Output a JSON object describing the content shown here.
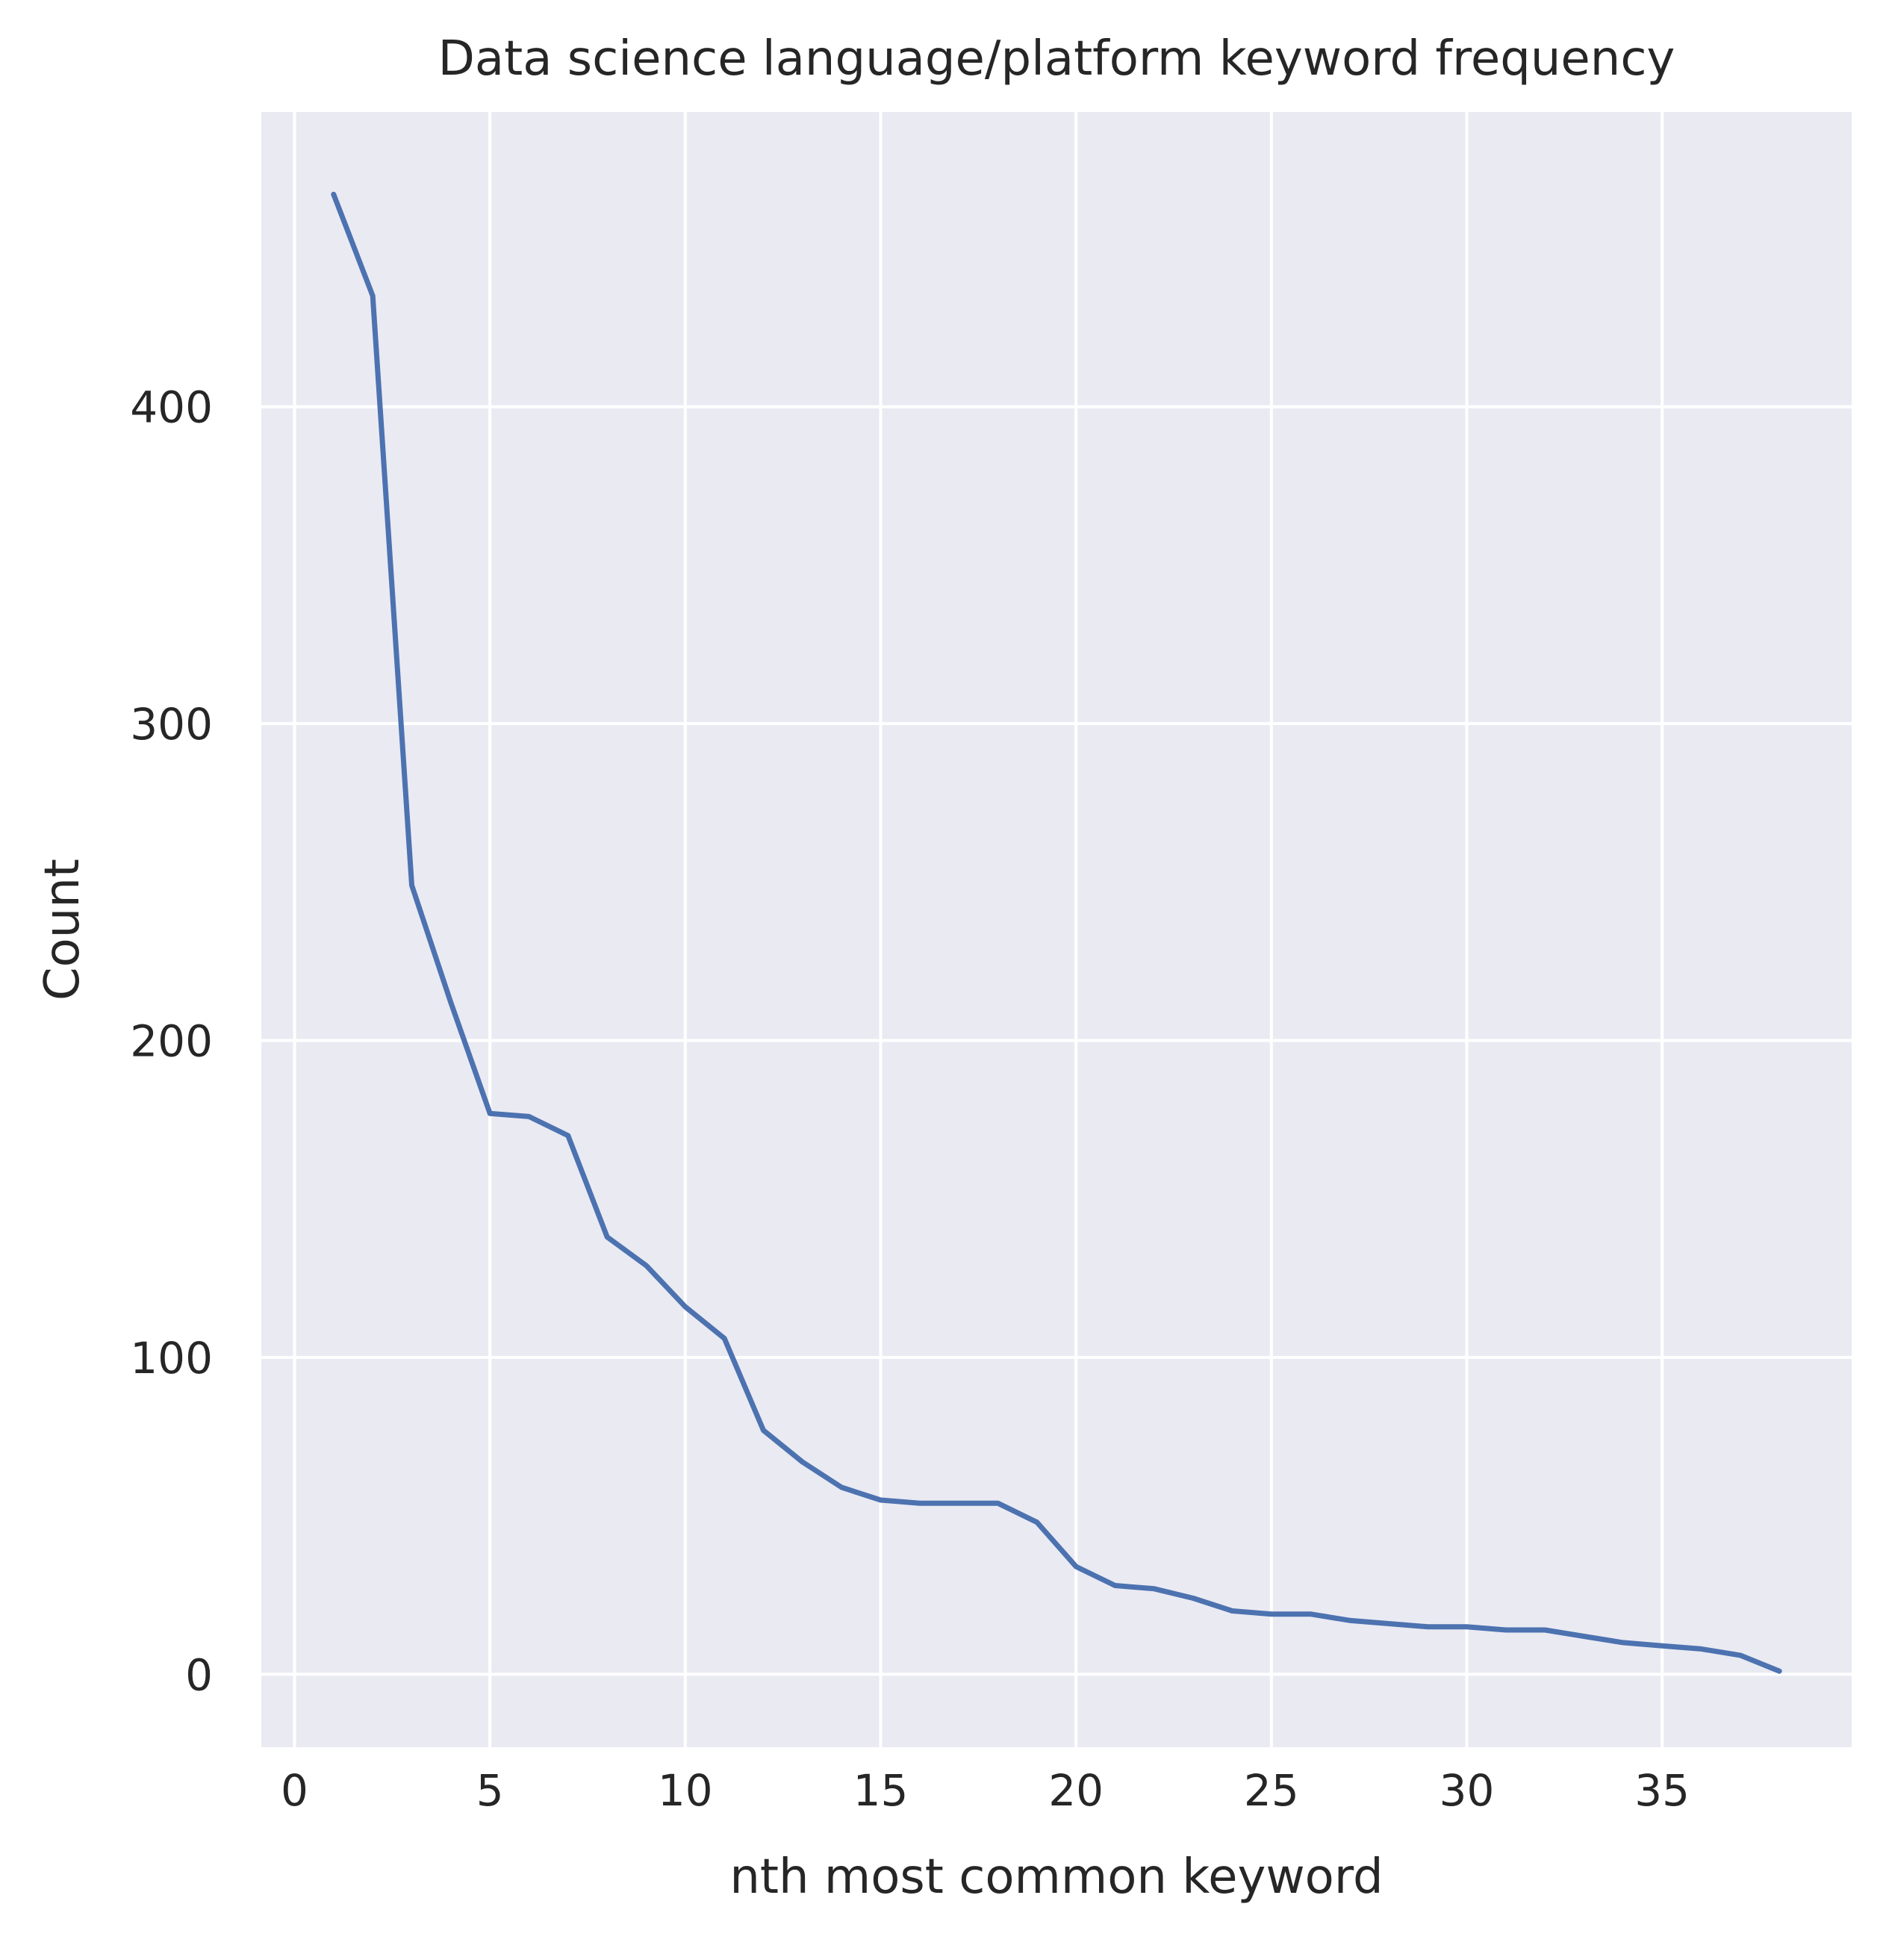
{
  "chart_data": {
    "type": "line",
    "title": "Data science language/platform keyword frequency",
    "xlabel": "nth most common keyword",
    "ylabel": "Count",
    "xlim": [
      -0.85,
      39.85
    ],
    "ylim": [
      -23,
      493
    ],
    "x_ticks": [
      0,
      5,
      10,
      15,
      20,
      25,
      30,
      35
    ],
    "y_ticks": [
      0,
      100,
      200,
      300,
      400
    ],
    "grid": true,
    "colors": {
      "plot_background": "#eaeaf2",
      "grid": "#ffffff",
      "line": "#4c72b0",
      "text": "#262626"
    },
    "series": [
      {
        "x": [
          1,
          2,
          3,
          4,
          5,
          6,
          7,
          8,
          9,
          10,
          11,
          12,
          13,
          14,
          15,
          16,
          17,
          18,
          19,
          20,
          21,
          22,
          23,
          24,
          25,
          26,
          27,
          28,
          29,
          30,
          31,
          32,
          33,
          34,
          35,
          36,
          37,
          38
        ],
        "values": [
          467,
          435,
          249,
          212,
          177,
          176,
          170,
          138,
          129,
          116,
          106,
          77,
          67,
          59,
          55,
          54,
          54,
          54,
          48,
          34,
          28,
          27,
          24,
          20,
          19,
          19,
          17,
          16,
          15,
          15,
          14,
          14,
          12,
          10,
          9,
          8,
          6,
          1
        ]
      }
    ]
  }
}
